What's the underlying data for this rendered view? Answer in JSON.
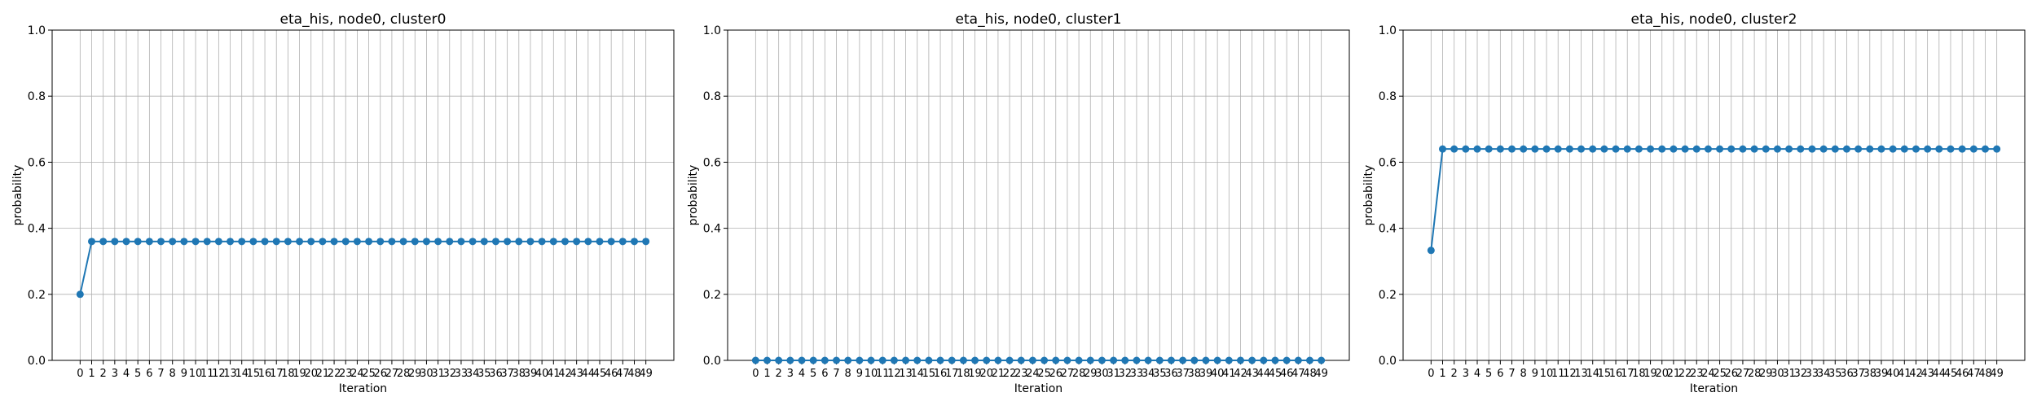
{
  "chart_data": [
    {
      "type": "line",
      "title": "eta_his, node0, cluster0",
      "xlabel": "Iteration",
      "ylabel": "probability",
      "ylim": [
        0,
        1.0
      ],
      "yticks": [
        "0.0",
        "0.2",
        "0.4",
        "0.6",
        "0.8",
        "1.0"
      ],
      "grid": true,
      "x_start": 0,
      "x_end": 49,
      "series": [
        {
          "color": "#1f77b4",
          "marker": "circle",
          "first": 0.2,
          "rest": 0.36
        }
      ]
    },
    {
      "type": "line",
      "title": "eta_his, node0, cluster1",
      "xlabel": "Iteration",
      "ylabel": "probability",
      "ylim": [
        0,
        1.0
      ],
      "yticks": [
        "0.0",
        "0.2",
        "0.4",
        "0.6",
        "0.8",
        "1.0"
      ],
      "grid": true,
      "x_start": 0,
      "x_end": 49,
      "series": [
        {
          "color": "#1f77b4",
          "marker": "circle",
          "first": 0.0,
          "rest": 0.0
        }
      ]
    },
    {
      "type": "line",
      "title": "eta_his, node0, cluster2",
      "xlabel": "Iteration",
      "ylabel": "probability",
      "ylim": [
        0,
        1.0
      ],
      "yticks": [
        "0.0",
        "0.2",
        "0.4",
        "0.6",
        "0.8",
        "1.0"
      ],
      "grid": true,
      "x_start": 0,
      "x_end": 49,
      "series": [
        {
          "color": "#1f77b4",
          "marker": "circle",
          "first": 0.333,
          "rest": 0.64
        }
      ]
    }
  ]
}
